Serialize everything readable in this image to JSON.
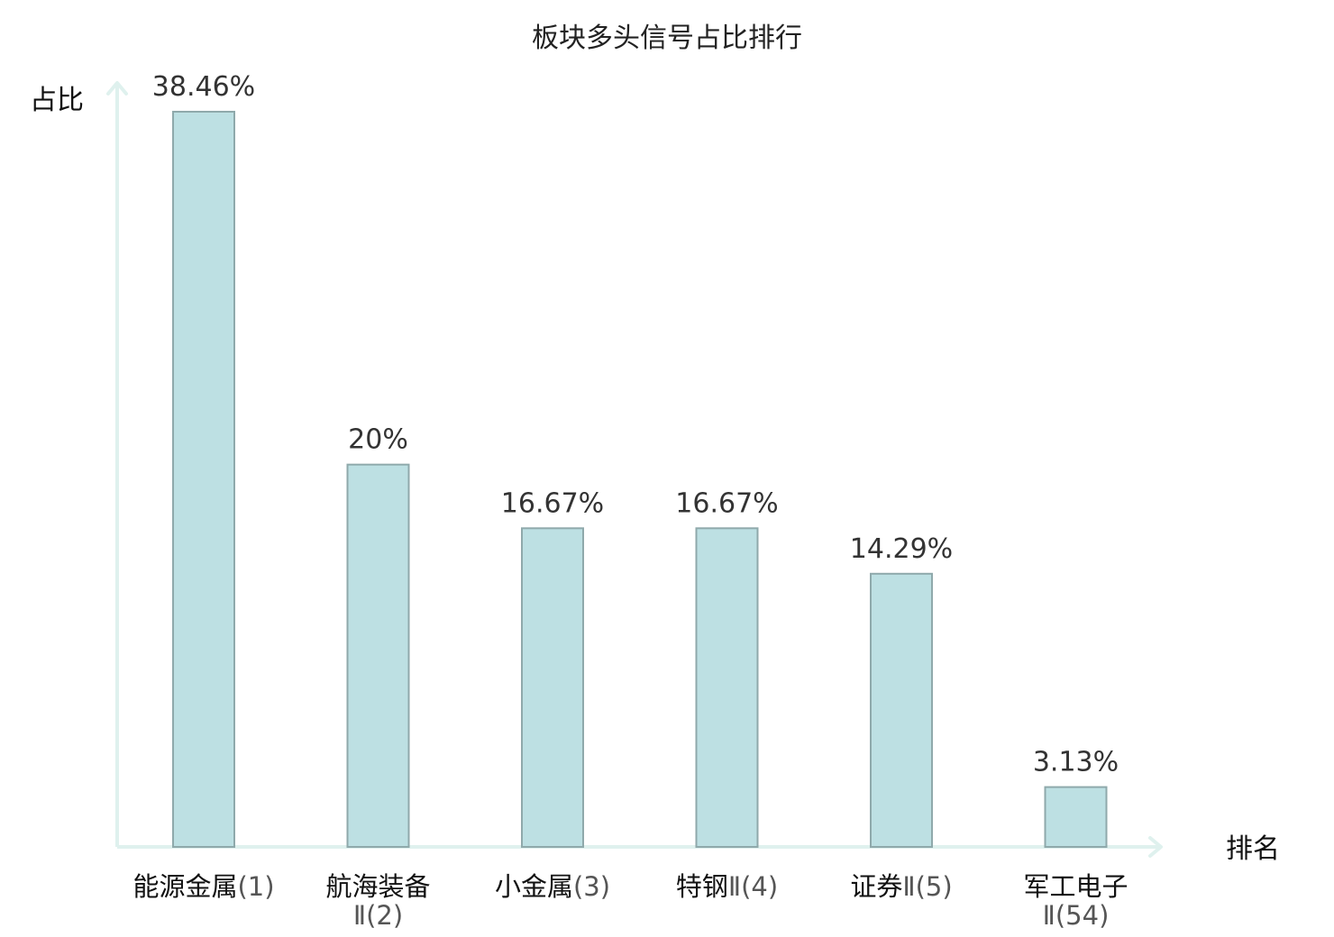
{
  "chart_data": {
    "type": "bar",
    "title": "板块多头信号占比排行",
    "ylabel": "占比",
    "xlabel": "排名",
    "categories": [
      {
        "line1": "能源金属",
        "line2": "(1)"
      },
      {
        "line1": "航海装备",
        "line2": "Ⅱ(2)"
      },
      {
        "line1": "小金属",
        "line2": "(3)"
      },
      {
        "line1": "特钢",
        "line2": "Ⅱ(4)"
      },
      {
        "line1": "证券",
        "line2": "Ⅱ(5)"
      },
      {
        "line1": "军工电子",
        "line2": "Ⅱ(54)"
      }
    ],
    "values": [
      38.46,
      20,
      16.67,
      16.67,
      14.29,
      3.13
    ],
    "value_labels": [
      "38.46%",
      "20%",
      "16.67%",
      "16.67%",
      "14.29%",
      "3.13%"
    ],
    "highlight_index": 5,
    "ylim": [
      0,
      38.46
    ],
    "grid": false,
    "colors": {
      "bar_fill": "#bde0e3",
      "bar_stroke": "#8fa9ab",
      "axis": "#dff1ee",
      "highlight_text": "#e8191c"
    }
  }
}
